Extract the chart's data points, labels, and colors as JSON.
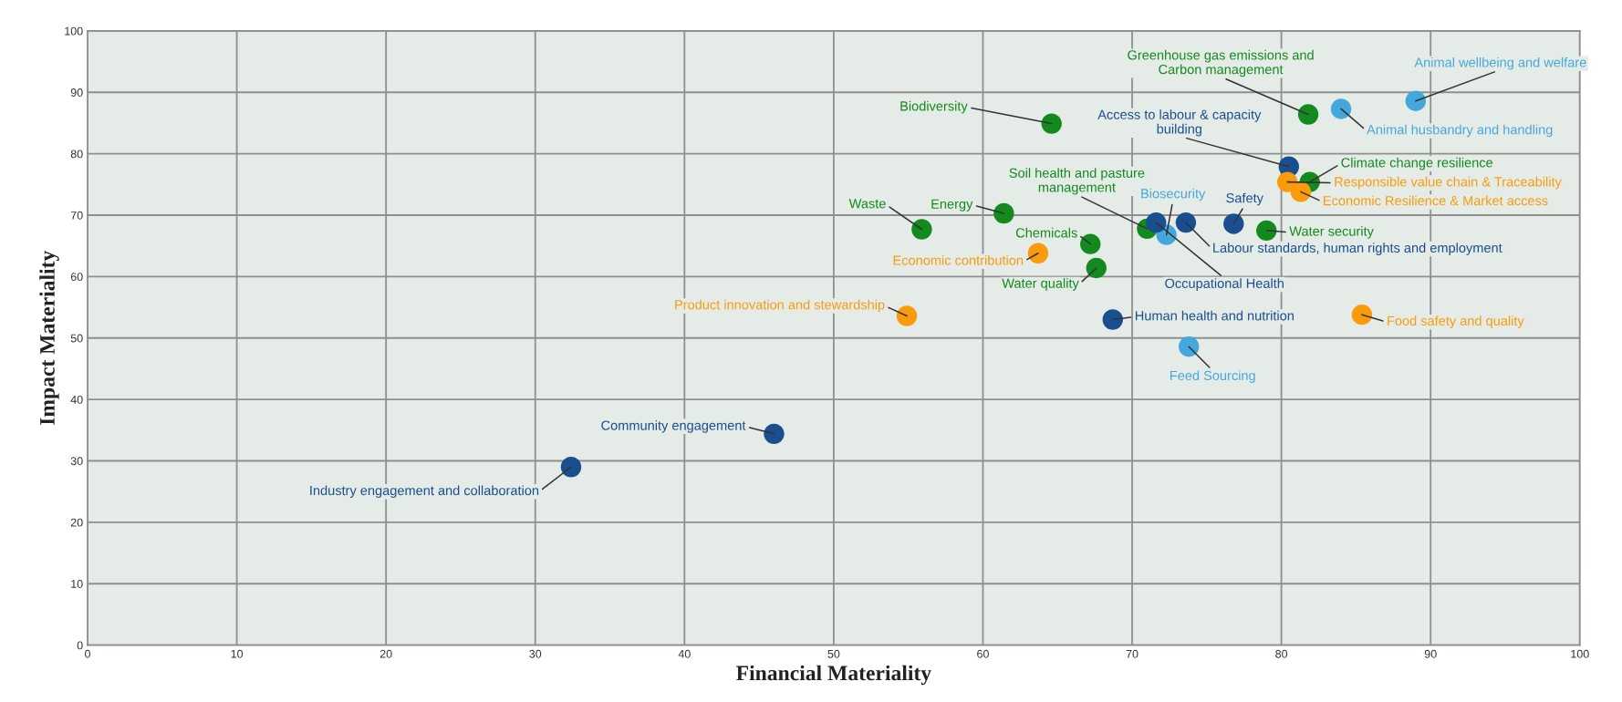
{
  "chart_data": {
    "type": "scatter",
    "xlabel": "Financial Materiality",
    "ylabel": "Impact Materiality",
    "xlim": [
      0,
      100
    ],
    "ylim": [
      0,
      100
    ],
    "xticks": [
      0,
      10,
      20,
      30,
      40,
      50,
      60,
      70,
      80,
      90,
      100
    ],
    "yticks": [
      0,
      10,
      20,
      30,
      40,
      50,
      60,
      70,
      80,
      90,
      100
    ],
    "grid": true,
    "marker": "circle",
    "series": [
      {
        "name": "Animal wellbeing and welfare",
        "color": "#45a8dc",
        "x": [
          89.0
        ],
        "values": [
          88.6
        ]
      },
      {
        "name": "Animal husbandry and handling",
        "color": "#45a8dc",
        "x": [
          84.0
        ],
        "values": [
          87.3
        ]
      },
      {
        "name": "Greenhouse gas emissions and\nCarbon management",
        "color": "#128a1e",
        "x": [
          81.8
        ],
        "values": [
          86.4
        ]
      },
      {
        "name": "Biodiversity",
        "color": "#128a1e",
        "x": [
          64.6
        ],
        "values": [
          84.9
        ]
      },
      {
        "name": "Access to labour & capacity\nbuilding",
        "color": "#1a4f8f",
        "x": [
          80.5
        ],
        "values": [
          77.9
        ]
      },
      {
        "name": "Climate change resilience",
        "color": "#128a1e",
        "x": [
          81.9
        ],
        "values": [
          75.4
        ]
      },
      {
        "name": "Responsible value chain & Traceability",
        "color": "#f99b0c",
        "x": [
          80.4
        ],
        "values": [
          75.4
        ]
      },
      {
        "name": "Economic Resilience & Market access",
        "color": "#f99b0c",
        "x": [
          81.3
        ],
        "values": [
          73.8
        ]
      },
      {
        "name": "Safety",
        "color": "#1a4f8f",
        "x": [
          76.8
        ],
        "values": [
          68.6
        ]
      },
      {
        "name": "Water security",
        "color": "#128a1e",
        "x": [
          79.0
        ],
        "values": [
          67.5
        ]
      },
      {
        "name": "Waste",
        "color": "#128a1e",
        "x": [
          55.9
        ],
        "values": [
          67.7
        ]
      },
      {
        "name": "Energy",
        "color": "#128a1e",
        "x": [
          61.4
        ],
        "values": [
          70.3
        ]
      },
      {
        "name": "Chemicals",
        "color": "#128a1e",
        "x": [
          67.2
        ],
        "values": [
          65.3
        ]
      },
      {
        "name": "Soil health and pasture\nmanagement",
        "color": "#128a1e",
        "x": [
          71.0
        ],
        "values": [
          67.8
        ]
      },
      {
        "name": "Biosecurity",
        "color": "#45a8dc",
        "x": [
          72.3
        ],
        "values": [
          66.8
        ]
      },
      {
        "name": "Occupational Health",
        "color": "#1a4f8f",
        "x": [
          71.6
        ],
        "values": [
          68.8
        ]
      },
      {
        "name": "Labour standards, human rights and employment",
        "color": "#1a4f8f",
        "x": [
          73.6
        ],
        "values": [
          68.8
        ]
      },
      {
        "name": "Economic contribution",
        "color": "#f99b0c",
        "x": [
          63.7
        ],
        "values": [
          63.8
        ]
      },
      {
        "name": "Water quality",
        "color": "#128a1e",
        "x": [
          67.6
        ],
        "values": [
          61.4
        ]
      },
      {
        "name": "Product innovation and stewardship",
        "color": "#f99b0c",
        "x": [
          54.9
        ],
        "values": [
          53.6
        ]
      },
      {
        "name": "Human health and nutrition",
        "color": "#1a4f8f",
        "x": [
          68.7
        ],
        "values": [
          53.0
        ]
      },
      {
        "name": "Food safety and quality",
        "color": "#f99b0c",
        "x": [
          85.4
        ],
        "values": [
          53.8
        ]
      },
      {
        "name": "Feed Sourcing",
        "color": "#45a8dc",
        "x": [
          73.8
        ],
        "values": [
          48.6
        ]
      },
      {
        "name": "Community engagement",
        "color": "#1a4f8f",
        "x": [
          46.0
        ],
        "values": [
          34.4
        ]
      },
      {
        "name": "Industry engagement and collaboration",
        "color": "#1a4f8f",
        "x": [
          32.4
        ],
        "values": [
          29.0
        ]
      }
    ]
  }
}
